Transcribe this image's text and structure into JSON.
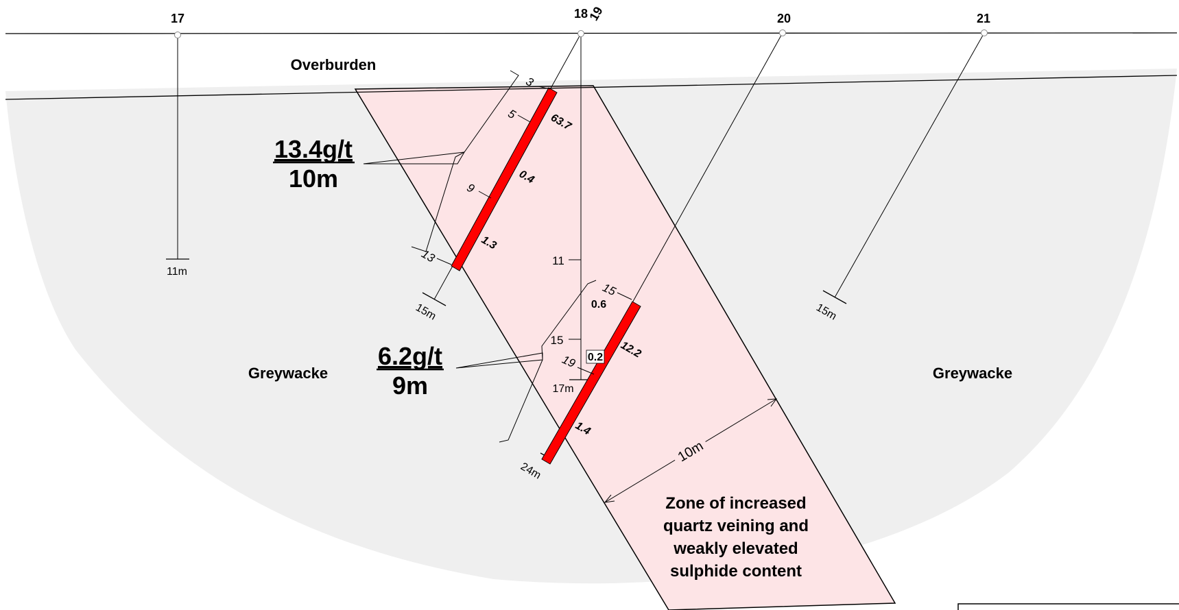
{
  "section": {
    "holes": [
      {
        "id": "17",
        "depth_label": "11m"
      },
      {
        "id": "18",
        "depth_label": "15m"
      },
      {
        "id": "19",
        "depth_label": "17m"
      },
      {
        "id": "20",
        "depth_label": "24m"
      },
      {
        "id": "21",
        "depth_label": "15m"
      }
    ],
    "units": {
      "overburden": "Overburden",
      "greywacke_left": "Greywacke",
      "greywacke_right": "Greywacke"
    },
    "zone_label_lines": [
      "Zone of increased",
      "quartz veining and",
      "weakly elevated",
      "sulphide content"
    ],
    "zone_width_label": "10m",
    "intercepts": [
      {
        "grade": "13.4g/t",
        "width": "10m"
      },
      {
        "grade": "6.2g/t",
        "width": "9m"
      }
    ],
    "depth_ticks": {
      "hole_18": [
        "3",
        "5",
        "9",
        "13"
      ],
      "hole_19": [
        "11",
        "15",
        "19"
      ],
      "hole_20": [
        "15"
      ]
    },
    "assays": {
      "hole_18": [
        "63.7",
        "0.4",
        "1.3"
      ],
      "hole_20": [
        "0.6",
        "0.2",
        "12.2",
        "1.4"
      ]
    }
  },
  "colors": {
    "greywacke_fill": "#efefef",
    "zone_fill": "#fde4e6",
    "mineralised_interval": "#ff0000"
  }
}
